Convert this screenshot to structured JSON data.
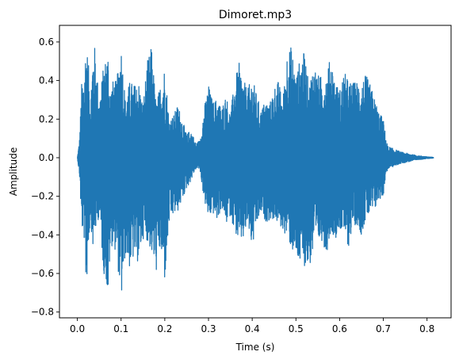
{
  "chart_data": {
    "type": "line",
    "title": "Dimoret.mp3",
    "xlabel": "Time (s)",
    "ylabel": "Amplitude",
    "xlim": [
      -0.041,
      0.855
    ],
    "ylim": [
      -0.83,
      0.686
    ],
    "xticks": [
      0.0,
      0.1,
      0.2,
      0.3,
      0.4,
      0.5,
      0.6,
      0.7,
      0.8
    ],
    "xtick_labels": [
      "0.0",
      "0.1",
      "0.2",
      "0.3",
      "0.4",
      "0.5",
      "0.6",
      "0.7",
      "0.8"
    ],
    "yticks": [
      -0.8,
      -0.6,
      -0.4,
      -0.2,
      0.0,
      0.2,
      0.4,
      0.6
    ],
    "ytick_labels": [
      "−0.8",
      "−0.6",
      "−0.4",
      "−0.2",
      "0.0",
      "0.2",
      "0.4",
      "0.6"
    ],
    "grid": false,
    "line_color": "#1f77b4",
    "duration_s": 0.815,
    "series": [
      {
        "name": "",
        "envelope": {
          "t": [
            0.0,
            0.005,
            0.01,
            0.015,
            0.02,
            0.025,
            0.03,
            0.035,
            0.04,
            0.05,
            0.06,
            0.065,
            0.07,
            0.075,
            0.08,
            0.09,
            0.1,
            0.11,
            0.12,
            0.13,
            0.14,
            0.15,
            0.16,
            0.17,
            0.18,
            0.19,
            0.2,
            0.21,
            0.22,
            0.23,
            0.24,
            0.25,
            0.26,
            0.27,
            0.28,
            0.29,
            0.3,
            0.31,
            0.32,
            0.33,
            0.34,
            0.35,
            0.36,
            0.37,
            0.38,
            0.39,
            0.4,
            0.41,
            0.42,
            0.43,
            0.44,
            0.45,
            0.46,
            0.47,
            0.48,
            0.49,
            0.5,
            0.51,
            0.52,
            0.53,
            0.54,
            0.55,
            0.56,
            0.57,
            0.58,
            0.59,
            0.6,
            0.61,
            0.62,
            0.63,
            0.64,
            0.65,
            0.66,
            0.67,
            0.68,
            0.69,
            0.7,
            0.705,
            0.71,
            0.72,
            0.73,
            0.74,
            0.75,
            0.76,
            0.77,
            0.78,
            0.79,
            0.8,
            0.815
          ],
          "upper": [
            0.0,
            0.1,
            0.4,
            0.42,
            0.62,
            0.5,
            0.3,
            0.55,
            0.58,
            0.3,
            0.48,
            0.52,
            0.56,
            0.35,
            0.4,
            0.4,
            0.6,
            0.3,
            0.4,
            0.38,
            0.4,
            0.28,
            0.5,
            0.58,
            0.28,
            0.38,
            0.48,
            0.2,
            0.22,
            0.28,
            0.2,
            0.12,
            0.15,
            0.08,
            0.09,
            0.26,
            0.38,
            0.29,
            0.31,
            0.26,
            0.33,
            0.23,
            0.4,
            0.49,
            0.4,
            0.36,
            0.42,
            0.33,
            0.25,
            0.3,
            0.28,
            0.37,
            0.4,
            0.3,
            0.56,
            0.58,
            0.42,
            0.52,
            0.55,
            0.37,
            0.5,
            0.43,
            0.42,
            0.44,
            0.53,
            0.4,
            0.35,
            0.45,
            0.4,
            0.39,
            0.4,
            0.4,
            0.43,
            0.38,
            0.31,
            0.24,
            0.2,
            0.12,
            0.06,
            0.05,
            0.04,
            0.03,
            0.025,
            0.02,
            0.015,
            0.01,
            0.008,
            0.005,
            0.002
          ],
          "lower": [
            0.0,
            -0.1,
            -0.38,
            -0.4,
            -0.7,
            -0.5,
            -0.3,
            -0.48,
            -0.4,
            -0.3,
            -0.6,
            -0.62,
            -0.76,
            -0.5,
            -0.45,
            -0.5,
            -0.76,
            -0.5,
            -0.58,
            -0.52,
            -0.55,
            -0.42,
            -0.43,
            -0.5,
            -0.6,
            -0.48,
            -0.65,
            -0.35,
            -0.3,
            -0.28,
            -0.22,
            -0.16,
            -0.12,
            -0.06,
            -0.06,
            -0.22,
            -0.32,
            -0.29,
            -0.33,
            -0.26,
            -0.35,
            -0.3,
            -0.38,
            -0.45,
            -0.43,
            -0.35,
            -0.48,
            -0.36,
            -0.29,
            -0.33,
            -0.33,
            -0.32,
            -0.35,
            -0.38,
            -0.41,
            -0.48,
            -0.53,
            -0.57,
            -0.56,
            -0.58,
            -0.5,
            -0.45,
            -0.43,
            -0.5,
            -0.38,
            -0.42,
            -0.37,
            -0.4,
            -0.47,
            -0.35,
            -0.35,
            -0.4,
            -0.32,
            -0.3,
            -0.28,
            -0.22,
            -0.2,
            -0.1,
            -0.06,
            -0.05,
            -0.04,
            -0.03,
            -0.025,
            -0.02,
            -0.015,
            -0.01,
            -0.008,
            -0.005,
            -0.002
          ]
        }
      }
    ]
  }
}
